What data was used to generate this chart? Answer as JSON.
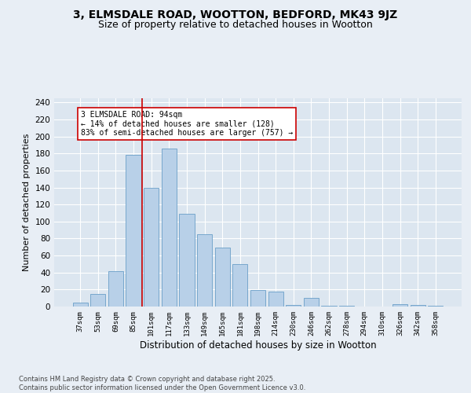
{
  "title1": "3, ELMSDALE ROAD, WOOTTON, BEDFORD, MK43 9JZ",
  "title2": "Size of property relative to detached houses in Wootton",
  "xlabel": "Distribution of detached houses by size in Wootton",
  "ylabel": "Number of detached properties",
  "categories": [
    "37sqm",
    "53sqm",
    "69sqm",
    "85sqm",
    "101sqm",
    "117sqm",
    "133sqm",
    "149sqm",
    "165sqm",
    "181sqm",
    "198sqm",
    "214sqm",
    "230sqm",
    "246sqm",
    "262sqm",
    "278sqm",
    "294sqm",
    "310sqm",
    "326sqm",
    "342sqm",
    "358sqm"
  ],
  "values": [
    5,
    15,
    42,
    178,
    140,
    186,
    109,
    85,
    69,
    50,
    19,
    18,
    2,
    10,
    1,
    1,
    0,
    0,
    3,
    2,
    1
  ],
  "bar_color": "#b8d0e8",
  "bar_edge_color": "#6a9fc8",
  "vline_x_index": 3.5,
  "vline_color": "#cc0000",
  "annotation_text": "3 ELMSDALE ROAD: 94sqm\n← 14% of detached houses are smaller (128)\n83% of semi-detached houses are larger (757) →",
  "annotation_box_color": "#ffffff",
  "annotation_box_edge": "#cc0000",
  "ylim": [
    0,
    245
  ],
  "yticks": [
    0,
    20,
    40,
    60,
    80,
    100,
    120,
    140,
    160,
    180,
    200,
    220,
    240
  ],
  "footer": "Contains HM Land Registry data © Crown copyright and database right 2025.\nContains public sector information licensed under the Open Government Licence v3.0.",
  "bg_color": "#e8eef5",
  "plot_bg_color": "#dce6f0",
  "grid_color": "#ffffff",
  "title1_fontsize": 10,
  "title2_fontsize": 9
}
